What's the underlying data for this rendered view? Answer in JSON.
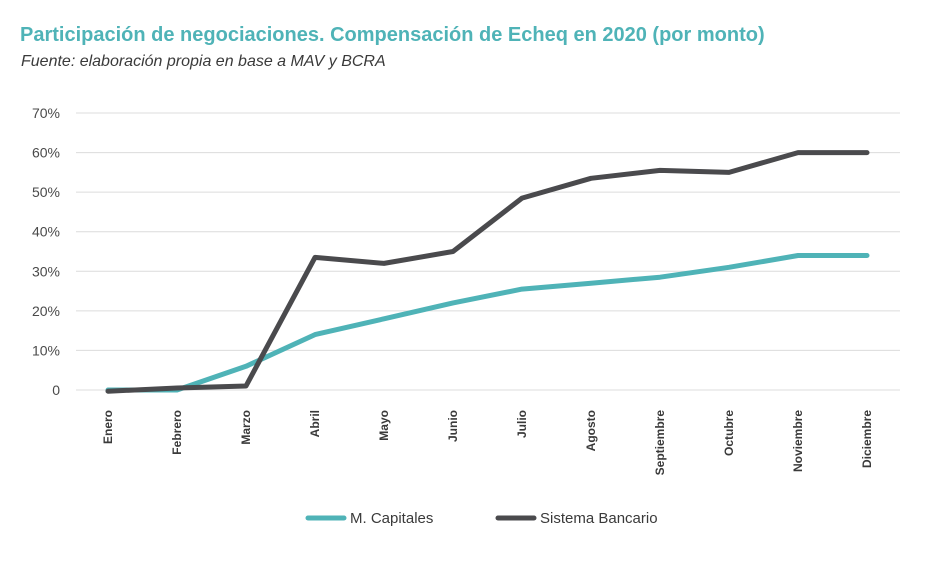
{
  "chart_data": {
    "type": "line",
    "title": "Participación de negociaciones. Compensación de Echeq en 2020 (por monto)",
    "subtitle": "Fuente: elaboración propia en base a MAV y BCRA",
    "categories": [
      "Enero",
      "Febrero",
      "Marzo",
      "Abril",
      "Mayo",
      "Junio",
      "Julio",
      "Agosto",
      "Septiembre",
      "Octubre",
      "Noviembre",
      "Diciembre"
    ],
    "y_ticks": [
      "0",
      "10%",
      "20%",
      "30%",
      "40%",
      "50%",
      "60%",
      "70%"
    ],
    "ylim": [
      0,
      70
    ],
    "grid": true,
    "legend_position": "bottom",
    "series": [
      {
        "name": "M. Capitales",
        "color": "#4fb3b7",
        "values": [
          0,
          0,
          6,
          14,
          18,
          22,
          25.5,
          27,
          28.5,
          31,
          34,
          34
        ]
      },
      {
        "name": "Sistema Bancario",
        "color": "#4a4a4d",
        "values": [
          -0.3,
          0.5,
          1,
          33.5,
          32,
          35,
          48.5,
          53.5,
          55.5,
          55,
          60,
          60
        ]
      }
    ]
  }
}
